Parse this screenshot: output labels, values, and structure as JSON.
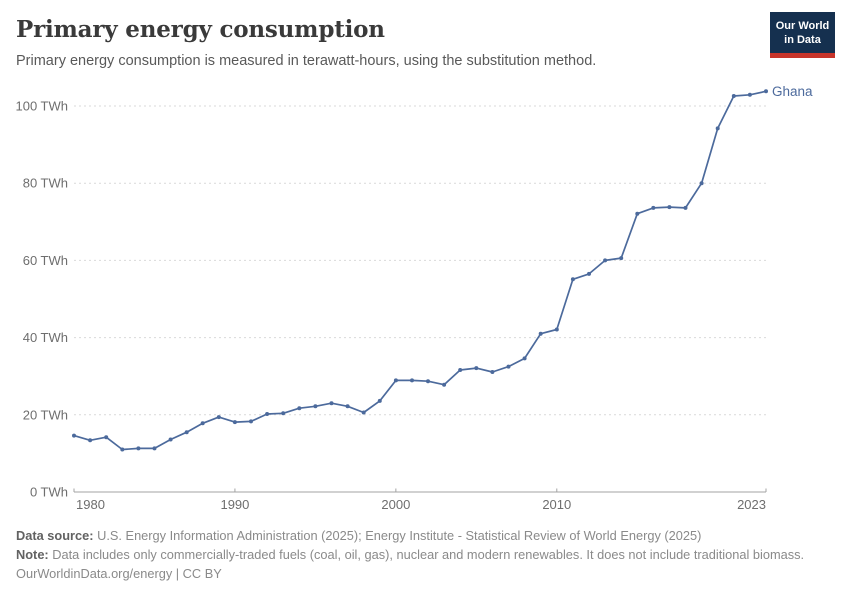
{
  "header": {
    "title": "Primary energy consumption",
    "subtitle": "Primary energy consumption is measured in terawatt-hours, using the substitution method.",
    "logo": {
      "line1": "Our World",
      "line2": "in Data"
    }
  },
  "chart_data": {
    "type": "line",
    "title": "Primary energy consumption",
    "unit": "TWh",
    "xlim": [
      1980,
      2023
    ],
    "ylim": [
      0,
      100
    ],
    "grid": "horizontal-dashed",
    "legend_position": "end-of-line-label",
    "x_ticks": [
      1980,
      1990,
      2000,
      2010,
      2023
    ],
    "y_ticks": [
      0,
      20,
      40,
      60,
      80,
      100
    ],
    "y_tick_suffix": " TWh",
    "series": [
      {
        "name": "Ghana",
        "color": "#4c6a9c",
        "x": [
          1980,
          1981,
          1982,
          1983,
          1984,
          1985,
          1986,
          1987,
          1988,
          1989,
          1990,
          1991,
          1992,
          1993,
          1994,
          1995,
          1996,
          1997,
          1998,
          1999,
          2000,
          2001,
          2002,
          2003,
          2004,
          2005,
          2006,
          2007,
          2008,
          2009,
          2010,
          2011,
          2012,
          2013,
          2014,
          2015,
          2016,
          2017,
          2018,
          2019,
          2020,
          2021,
          2022,
          2023
        ],
        "values": [
          14.6,
          13.4,
          14.2,
          11.0,
          11.3,
          11.3,
          13.6,
          15.5,
          17.8,
          19.4,
          18.1,
          18.3,
          20.2,
          20.4,
          21.7,
          22.2,
          23.0,
          22.2,
          20.6,
          23.6,
          28.9,
          28.9,
          28.7,
          27.8,
          31.6,
          32.1,
          31.1,
          32.5,
          34.6,
          41.0,
          42.1,
          55.1,
          56.5,
          60.0,
          60.6,
          72.1,
          73.6,
          73.8,
          73.6,
          80.0,
          94.2,
          102.6,
          102.9,
          103.8
        ]
      }
    ]
  },
  "footer": {
    "sources_label": "Data source:",
    "sources": " U.S. Energy Information Administration (2025); Energy Institute - Statistical Review of World Energy (2025)",
    "note_label": "Note:",
    "note": " Data includes only commercially-traded fuels (coal, oil, gas), nuclear and modern renewables. It does not include traditional biomass.",
    "license": "OurWorldinData.org/energy | CC BY"
  },
  "colors": {
    "line": "#4c6a9c",
    "grid": "#d9d9d9",
    "axis": "#a3a3a3",
    "tick_label": "#6e6e6e",
    "logo_bg": "#15304f",
    "logo_stripe": "#c7342a"
  }
}
